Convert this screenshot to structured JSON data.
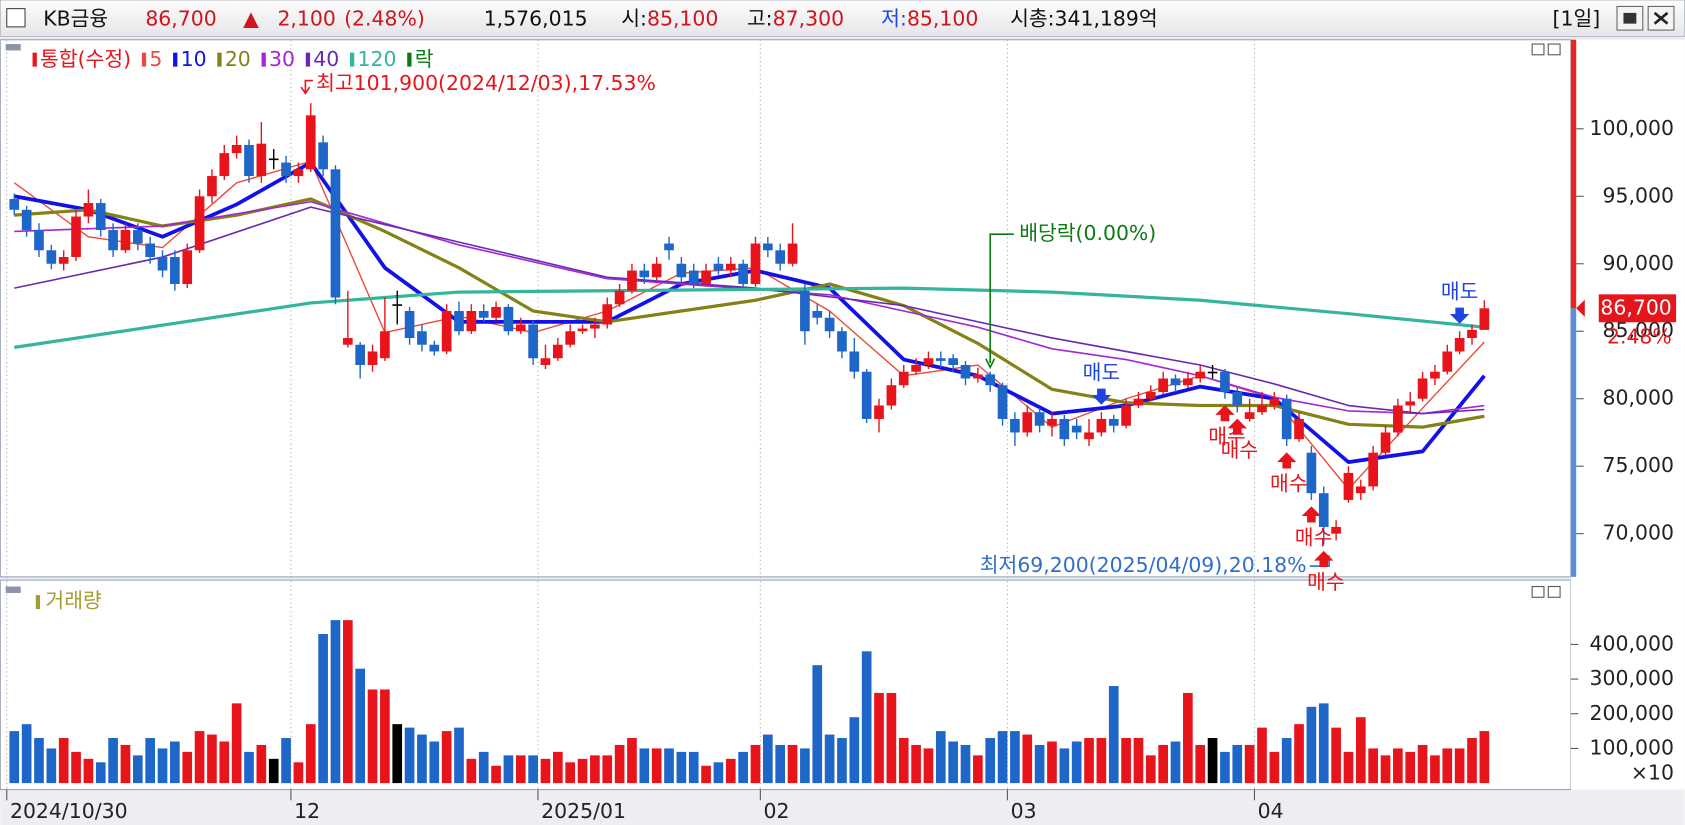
{
  "header": {
    "name": "KB금융",
    "price": "86,700",
    "arrow": "▲",
    "change": "2,100",
    "change_pct": "(2.48%)",
    "volume": "1,576,015",
    "open": {
      "label": "시:",
      "value": "85,100"
    },
    "high": {
      "label": "고:",
      "value": "87,300"
    },
    "low": {
      "label": "저:",
      "value": "85,100"
    },
    "cap": "시총:341,189억",
    "period": "[1일]"
  },
  "chart_data": [
    {
      "type": "candlestick",
      "up_color": "#e8141b",
      "down_color": "#1f66c9",
      "doji_color": "#000000",
      "name": "통합(수정)",
      "open": [
        94800,
        94000,
        92500,
        91000,
        90000,
        90500,
        93500,
        94500,
        92500,
        91000,
        92500,
        91500,
        90500,
        90500,
        88500,
        91000,
        95000,
        96500,
        98200,
        98800,
        96500,
        97800,
        97500,
        96500,
        97000,
        99000,
        97000,
        84000,
        84000,
        82500,
        83000,
        87000,
        86500,
        85000,
        84000,
        83500,
        86500,
        85000,
        86500,
        86000,
        86800,
        85000,
        85500,
        82500,
        83000,
        84000,
        85000,
        85200,
        85500,
        87000,
        88000,
        89500,
        89000,
        91500,
        90000,
        89500,
        88500,
        90000,
        89500,
        90000,
        88500,
        91500,
        91000,
        90000,
        88000,
        86500,
        86000,
        85000,
        83500,
        82000,
        78500,
        79500,
        81000,
        82000,
        82500,
        83000,
        83000,
        82500,
        81500,
        81800,
        81000,
        78500,
        77500,
        79000,
        78000,
        78500,
        78000,
        77000,
        77500,
        78500,
        78000,
        79500,
        80000,
        80500,
        81500,
        81000,
        81500,
        82000,
        82000,
        80500,
        78500,
        79000,
        79500,
        80000,
        77000,
        76000,
        73000,
        70000,
        72500,
        73000,
        73500,
        76000,
        77500,
        79500,
        80000,
        81500,
        82000,
        83500,
        84500,
        85100
      ],
      "high": [
        95200,
        94300,
        93000,
        91400,
        91000,
        94000,
        95500,
        94800,
        93000,
        93000,
        93000,
        92000,
        91000,
        91000,
        91500,
        95500,
        97000,
        98800,
        99500,
        99200,
        100500,
        98500,
        98000,
        97500,
        101900,
        99500,
        97300,
        88000,
        84200,
        84000,
        87500,
        88000,
        86800,
        85500,
        84300,
        87000,
        87200,
        87000,
        87000,
        87200,
        87000,
        86000,
        85800,
        84000,
        84500,
        85500,
        85500,
        86000,
        87500,
        88500,
        90000,
        90000,
        90500,
        92000,
        90500,
        90000,
        90000,
        90500,
        90500,
        90300,
        92000,
        92000,
        91500,
        93000,
        88500,
        87000,
        86500,
        85300,
        84500,
        82200,
        80000,
        81500,
        82500,
        83000,
        83500,
        83500,
        83300,
        82800,
        82300,
        82000,
        81200,
        79000,
        79500,
        79300,
        79000,
        78800,
        78500,
        78500,
        79000,
        78800,
        80000,
        80500,
        81000,
        82000,
        81800,
        82000,
        82500,
        82500,
        82200,
        80800,
        80000,
        80500,
        80500,
        80300,
        79000,
        76500,
        73500,
        71000,
        75000,
        74000,
        76500,
        78000,
        80000,
        80500,
        82000,
        82500,
        84000,
        85000,
        85500,
        87300
      ],
      "low": [
        93600,
        92000,
        90500,
        89600,
        89500,
        90200,
        93000,
        92000,
        90500,
        90800,
        91000,
        90000,
        89000,
        88000,
        88200,
        90800,
        94500,
        96200,
        97800,
        96000,
        96000,
        97000,
        96000,
        96000,
        96800,
        96500,
        87000,
        83800,
        81500,
        82000,
        82800,
        85500,
        84000,
        83500,
        83200,
        83300,
        84700,
        84800,
        85700,
        85800,
        84700,
        84800,
        82500,
        82200,
        82800,
        83800,
        84800,
        84500,
        85200,
        86800,
        87800,
        88500,
        88800,
        90300,
        88500,
        88200,
        88300,
        89200,
        89000,
        88200,
        88300,
        90500,
        89500,
        89800,
        84000,
        85500,
        84500,
        83000,
        81500,
        78200,
        77500,
        79200,
        80800,
        81800,
        82200,
        82300,
        82000,
        81000,
        81200,
        80500,
        78000,
        76500,
        77200,
        77500,
        77200,
        76500,
        77000,
        76500,
        77200,
        77500,
        77800,
        79300,
        79800,
        80300,
        80500,
        80800,
        81200,
        81500,
        80000,
        79000,
        78300,
        78800,
        79200,
        76500,
        76800,
        72500,
        69200,
        69500,
        72300,
        72500,
        73200,
        75800,
        77200,
        79000,
        79800,
        81000,
        81800,
        83300,
        84000,
        85100
      ],
      "close": [
        94000,
        92500,
        91000,
        90000,
        90500,
        93500,
        94500,
        92500,
        91000,
        92500,
        91500,
        90500,
        89500,
        88500,
        91000,
        95000,
        96500,
        98200,
        98800,
        96500,
        98900,
        97800,
        96500,
        97000,
        101000,
        97000,
        87500,
        84500,
        82500,
        83500,
        85000,
        87000,
        84500,
        84000,
        83500,
        86500,
        85000,
        86500,
        86000,
        86800,
        85000,
        85500,
        83000,
        83000,
        84000,
        85000,
        85200,
        85500,
        87000,
        88000,
        89500,
        89000,
        90000,
        91000,
        89000,
        88500,
        89500,
        89500,
        90000,
        88500,
        91500,
        91000,
        90000,
        91500,
        85000,
        86000,
        85000,
        83500,
        82000,
        78500,
        79500,
        81000,
        82000,
        82500,
        83000,
        82800,
        82500,
        81500,
        81800,
        81000,
        78500,
        77500,
        79000,
        78000,
        78500,
        77000,
        77500,
        77500,
        78500,
        78000,
        79500,
        80000,
        80500,
        81500,
        81000,
        81500,
        82000,
        82000,
        80500,
        79500,
        79000,
        79500,
        80000,
        77000,
        78500,
        73000,
        70500,
        70500,
        74500,
        73500,
        76000,
        77500,
        79500,
        79800,
        81500,
        82000,
        83500,
        84500,
        85100,
        86700
      ],
      "lines": [
        {
          "name": "5",
          "color": "#ea4b3c",
          "width": 1.3,
          "x": [
            0,
            6,
            12,
            18,
            24,
            30,
            36,
            42,
            48,
            54,
            60,
            66,
            72,
            78,
            84,
            90,
            96,
            102,
            108,
            114,
            119
          ],
          "values": [
            96000,
            92000,
            91200,
            96000,
            97600,
            84900,
            86100,
            84900,
            86500,
            89300,
            89700,
            86500,
            81700,
            82500,
            77900,
            80000,
            81700,
            80000,
            73300,
            79300,
            84200
          ]
        },
        {
          "name": "10",
          "color": "#1212e6",
          "width": 3.5,
          "x": [
            0,
            6,
            12,
            18,
            24,
            30,
            36,
            42,
            48,
            54,
            60,
            66,
            72,
            78,
            84,
            90,
            96,
            102,
            108,
            114,
            119
          ],
          "values": [
            95000,
            94000,
            92000,
            94400,
            97500,
            89700,
            85700,
            85700,
            85700,
            88500,
            89500,
            88200,
            82900,
            81700,
            78900,
            79500,
            80900,
            80000,
            75300,
            76100,
            81700
          ]
        },
        {
          "name": "20",
          "color": "#858215",
          "width": 3,
          "x": [
            0,
            6,
            12,
            18,
            24,
            30,
            36,
            42,
            48,
            54,
            60,
            66,
            72,
            78,
            84,
            90,
            96,
            102,
            108,
            114,
            119
          ],
          "values": [
            93600,
            94000,
            92800,
            93600,
            94800,
            92400,
            89700,
            86500,
            85700,
            86500,
            87300,
            88500,
            86900,
            84100,
            80700,
            79700,
            79500,
            79500,
            78100,
            77900,
            78700
          ]
        },
        {
          "name": "30",
          "color": "#a526d6",
          "width": 1.5,
          "x": [
            0,
            12,
            24,
            36,
            48,
            60,
            66,
            72,
            78,
            84,
            90,
            96,
            102,
            108,
            114,
            119
          ],
          "values": [
            92400,
            92800,
            94600,
            91400,
            88900,
            88100,
            87700,
            86500,
            85300,
            83700,
            82900,
            81700,
            80100,
            79100,
            78900,
            79500
          ]
        },
        {
          "name": "40",
          "color": "#6a2ab0",
          "width": 1.5,
          "x": [
            0,
            12,
            24,
            36,
            48,
            60,
            72,
            84,
            96,
            102,
            108,
            114,
            119
          ],
          "values": [
            88200,
            90500,
            94200,
            91600,
            89000,
            88200,
            86900,
            84500,
            82500,
            81100,
            79500,
            78900,
            79200
          ]
        },
        {
          "name": "120",
          "color": "#34b59c",
          "width": 3,
          "x": [
            0,
            24,
            36,
            60,
            72,
            84,
            96,
            108,
            119
          ],
          "values": [
            83800,
            87100,
            87900,
            88100,
            88200,
            87900,
            87300,
            86300,
            85300
          ]
        }
      ],
      "dividend": {
        "name": "락",
        "color": "#0b7a12",
        "label": "배당락(0.00%)",
        "x": 79
      },
      "high_note": {
        "text": "최고101,900(2024/12/03),17.53%",
        "x": 24,
        "color": "#e8141b"
      },
      "low_note": {
        "text": "최저69,200(2025/04/09),20.18%",
        "x": 106,
        "color": "#2f6fc8"
      },
      "signals": {
        "sell": {
          "label": "매도",
          "color": "#1f45e0",
          "x": [
            88,
            117
          ]
        },
        "buy": {
          "label": "매수",
          "color": "#e8141b",
          "x": [
            98,
            99,
            103,
            105,
            106
          ]
        }
      },
      "last_label": "86,700",
      "last_change": "2.48%",
      "ylim": [
        66800,
        106600
      ],
      "yticks": [
        {
          "value": 70000,
          "label": "70,000"
        },
        {
          "value": 75000,
          "label": "75,000"
        },
        {
          "value": 80000,
          "label": "80,000"
        },
        {
          "value": 85000,
          "label": "85,000"
        },
        {
          "value": 90000,
          "label": "90,000"
        },
        {
          "value": 95000,
          "label": "95,000"
        },
        {
          "value": 100000,
          "label": "100,000"
        }
      ]
    },
    {
      "type": "bar",
      "title": "거래량",
      "title_color": "#a39c33",
      "unit": "×10",
      "categories": [
        "2024/10/30",
        null,
        null,
        null,
        null,
        null,
        null,
        null,
        null,
        null,
        null,
        null,
        null,
        null,
        null,
        null,
        null,
        null,
        null,
        null,
        null,
        null,
        null,
        "12",
        null,
        null,
        null,
        null,
        null,
        null,
        null,
        null,
        null,
        null,
        null,
        null,
        null,
        null,
        null,
        null,
        null,
        null,
        null,
        "2025/01",
        null,
        null,
        null,
        null,
        null,
        null,
        null,
        null,
        null,
        null,
        null,
        null,
        null,
        null,
        null,
        null,
        null,
        "02",
        null,
        null,
        null,
        null,
        null,
        null,
        null,
        null,
        null,
        null,
        null,
        null,
        null,
        null,
        null,
        null,
        null,
        null,
        null,
        "03",
        null,
        null,
        null,
        null,
        null,
        null,
        null,
        null,
        null,
        null,
        null,
        null,
        null,
        null,
        null,
        null,
        null,
        null,
        null,
        "04",
        null,
        null,
        null,
        null,
        null,
        null,
        null,
        null,
        null,
        null,
        null,
        null,
        null,
        null,
        null,
        null,
        null,
        null
      ],
      "values": [
        150000,
        170000,
        130000,
        100000,
        130000,
        90000,
        70000,
        60000,
        130000,
        110000,
        80000,
        130000,
        100000,
        120000,
        90000,
        150000,
        140000,
        120000,
        230000,
        90000,
        110000,
        70000,
        130000,
        60000,
        170000,
        430000,
        470000,
        470000,
        330000,
        270000,
        270000,
        170000,
        160000,
        140000,
        120000,
        150000,
        160000,
        70000,
        90000,
        50000,
        80000,
        80000,
        80000,
        70000,
        90000,
        60000,
        70000,
        80000,
        80000,
        110000,
        130000,
        100000,
        100000,
        100000,
        90000,
        90000,
        50000,
        60000,
        70000,
        90000,
        110000,
        140000,
        110000,
        110000,
        100000,
        340000,
        140000,
        130000,
        190000,
        380000,
        260000,
        260000,
        130000,
        110000,
        100000,
        150000,
        120000,
        110000,
        80000,
        130000,
        150000,
        150000,
        140000,
        110000,
        120000,
        100000,
        120000,
        130000,
        130000,
        280000,
        130000,
        130000,
        80000,
        110000,
        120000,
        260000,
        110000,
        130000,
        90000,
        110000,
        110000,
        160000,
        90000,
        130000,
        170000,
        220000,
        230000,
        160000,
        90000,
        190000,
        100000,
        80000,
        100000,
        90000,
        110000,
        80000,
        100000,
        100000,
        130000,
        150000
      ],
      "ylim": [
        0,
        570000
      ],
      "yticks": [
        {
          "value": 100000,
          "label": "100,000"
        },
        {
          "value": 200000,
          "label": "200,000"
        },
        {
          "value": 300000,
          "label": "300,000"
        },
        {
          "value": 400000,
          "label": "400,000"
        }
      ]
    }
  ]
}
